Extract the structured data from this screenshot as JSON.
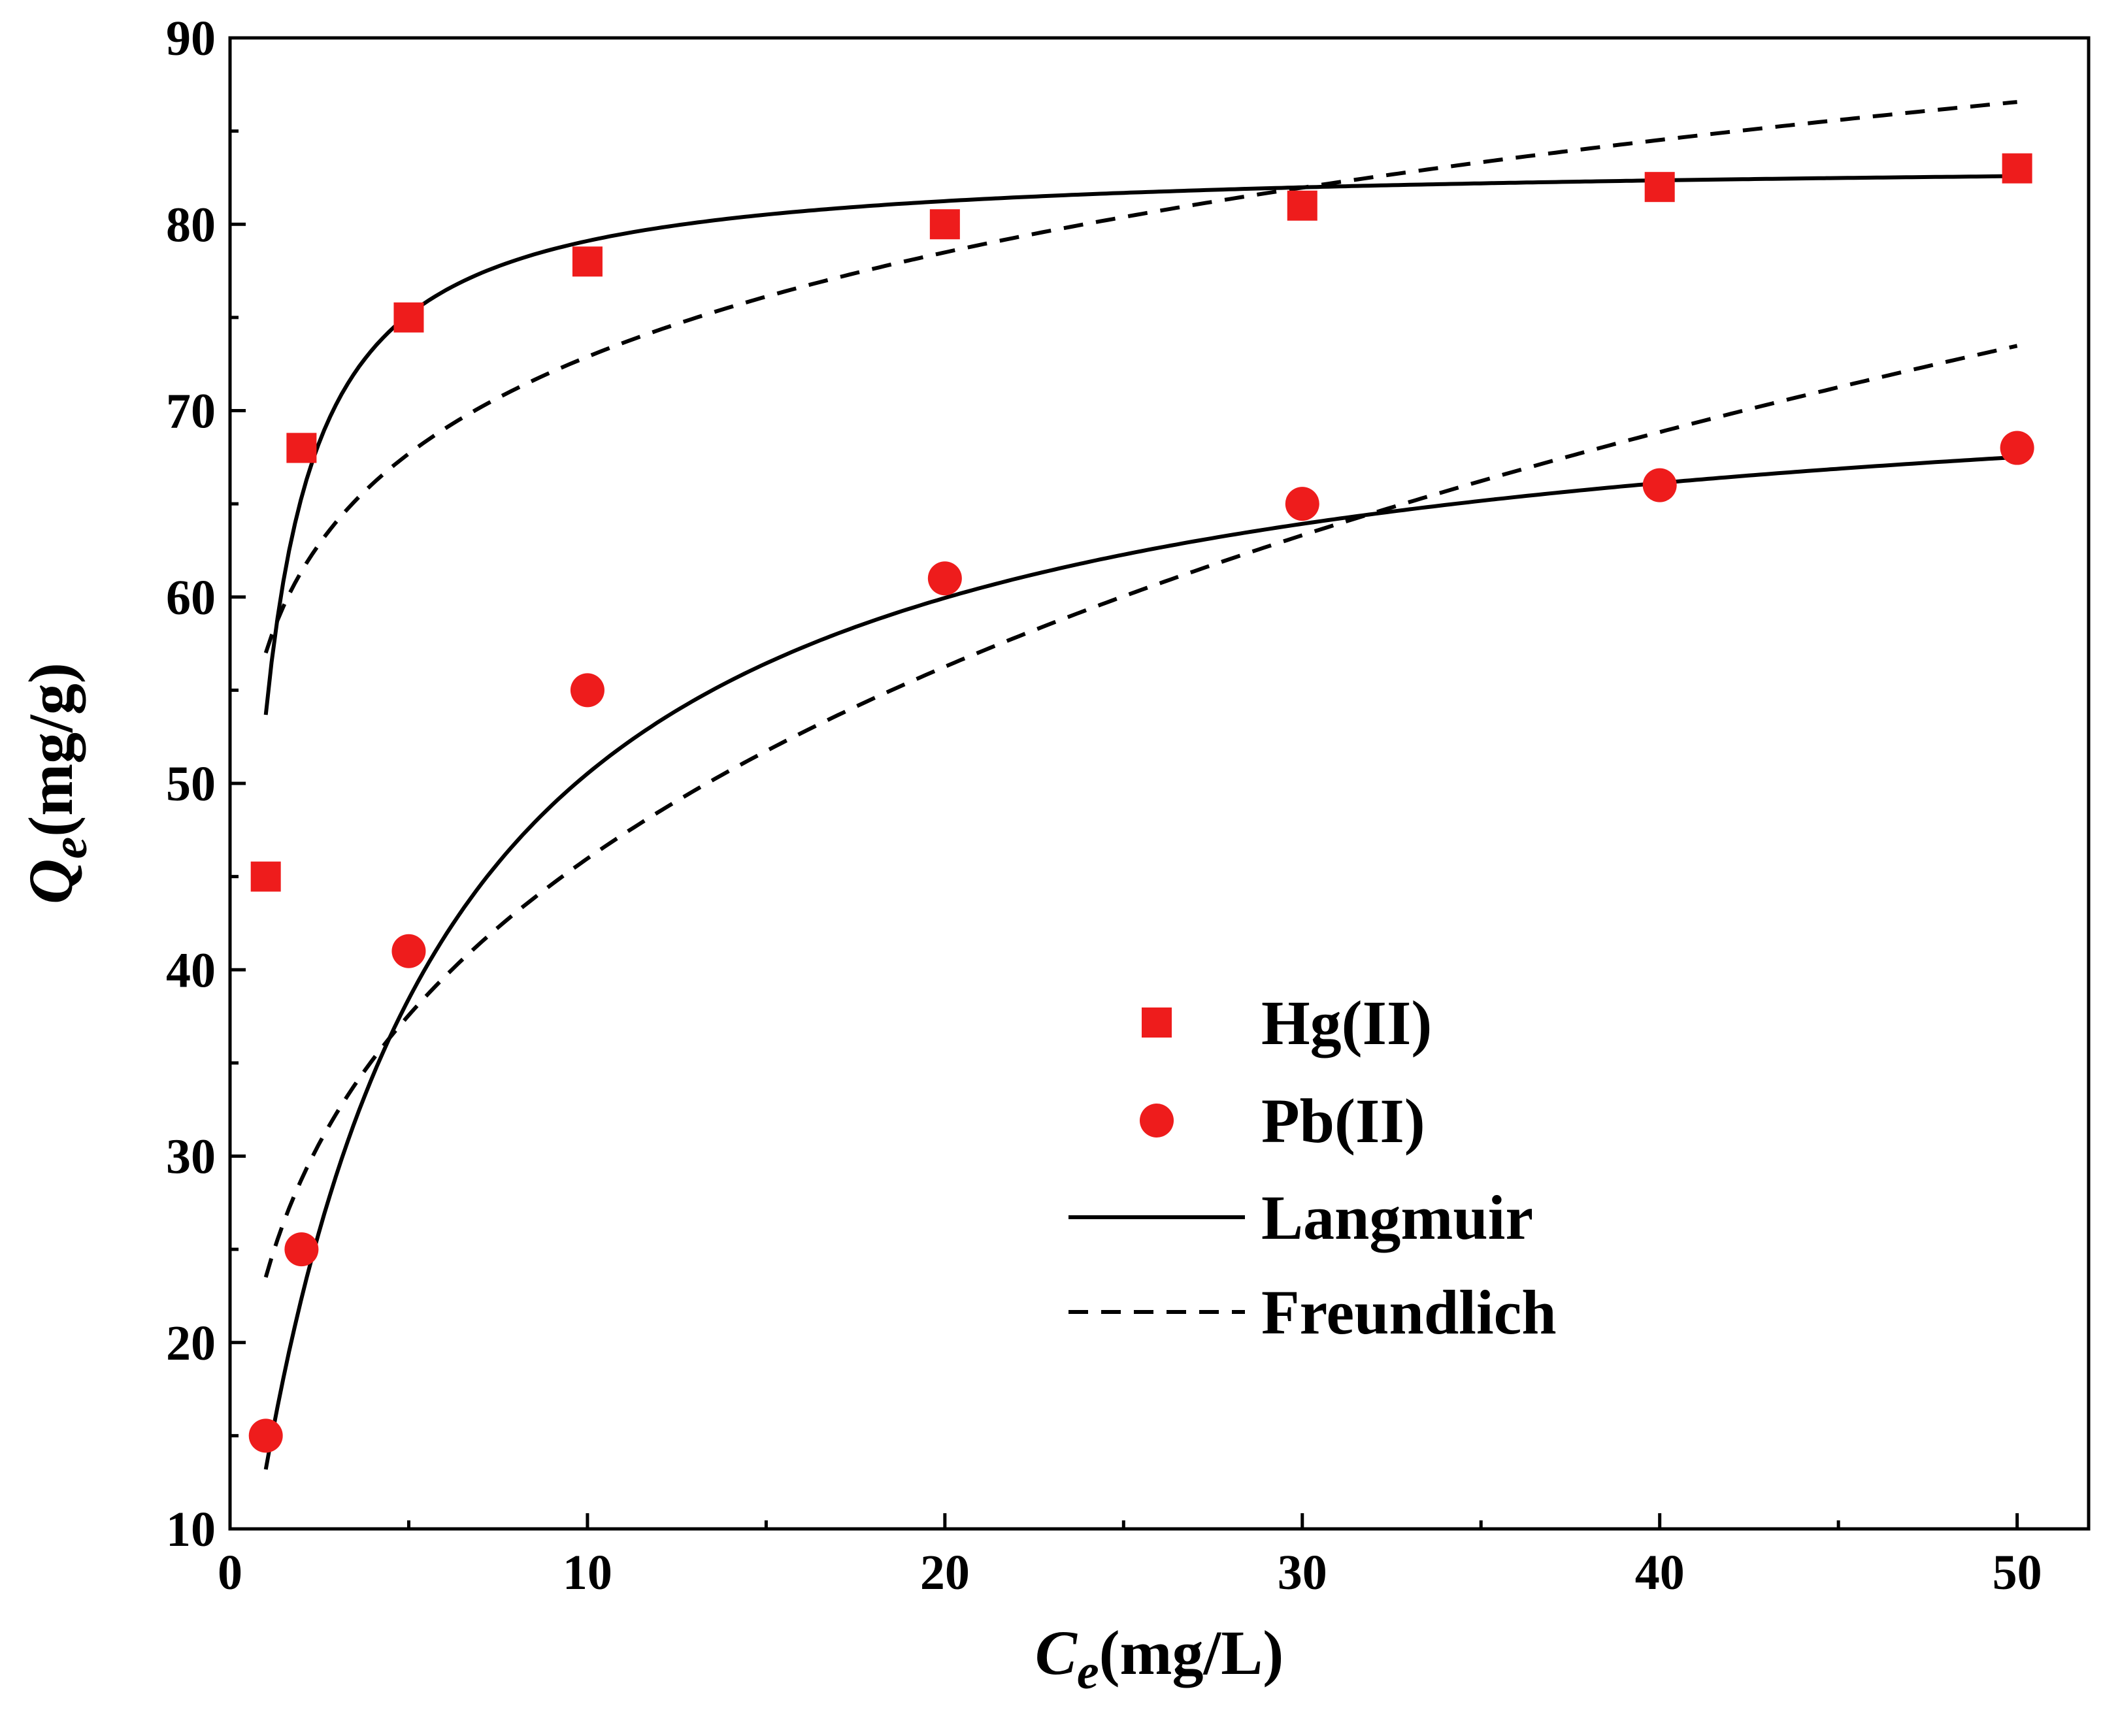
{
  "chart_data": {
    "type": "scatter",
    "title": "",
    "xlabel": {
      "main": "C",
      "sub": "e",
      "unit": "(mg/L)"
    },
    "ylabel": {
      "main": "Q",
      "sub": "e",
      "unit": "(mg/g)"
    },
    "xlim": [
      0,
      52
    ],
    "ylim": [
      10,
      90
    ],
    "xticks": [
      0,
      10,
      20,
      30,
      40,
      50
    ],
    "xticks_minor": [
      5,
      15,
      25,
      35,
      45
    ],
    "yticks": [
      10,
      20,
      30,
      40,
      50,
      60,
      70,
      80,
      90
    ],
    "yticks_minor": [
      15,
      25,
      35,
      45,
      55,
      65,
      75,
      85
    ],
    "grid": false,
    "colors": {
      "marker": "#ee1c1c",
      "line": "#000000"
    },
    "series": [
      {
        "name": "Hg(II)",
        "marker": "square",
        "x": [
          1,
          2,
          5,
          10,
          20,
          30,
          40,
          50
        ],
        "y": [
          45,
          68,
          75,
          78,
          80,
          81,
          82,
          83
        ]
      },
      {
        "name": "Pb(II)",
        "marker": "circle",
        "x": [
          1,
          2,
          5,
          10,
          20,
          30,
          40,
          50
        ],
        "y": [
          15,
          25,
          41,
          55,
          61,
          65,
          66,
          68
        ]
      }
    ],
    "fits": [
      {
        "name": "Langmuir",
        "style": "solid",
        "model": "langmuir",
        "for": "Hg(II)",
        "qmax": 83.5,
        "KL": 1.8,
        "xrange": [
          1,
          50
        ]
      },
      {
        "name": "Langmuir",
        "style": "solid",
        "model": "langmuir",
        "for": "Pb(II)",
        "qmax": 73.7,
        "KL": 0.218,
        "xrange": [
          1,
          50
        ]
      },
      {
        "name": "Freundlich",
        "style": "dashed",
        "model": "freundlich",
        "for": "Hg(II)",
        "KF": 57.0,
        "inv_n": 0.1068,
        "xrange": [
          1,
          50
        ]
      },
      {
        "name": "Freundlich",
        "style": "dashed",
        "model": "freundlich",
        "for": "Pb(II)",
        "KF": 23.5,
        "inv_n": 0.2914,
        "xrange": [
          1,
          50
        ]
      }
    ],
    "legend": {
      "position": "lower-right-center",
      "entries": [
        {
          "label": "Hg(II)",
          "kind": "square"
        },
        {
          "label": "Pb(II)",
          "kind": "circle"
        },
        {
          "label": "Langmuir",
          "kind": "solid"
        },
        {
          "label": "Freundlich",
          "kind": "dashed"
        }
      ]
    }
  }
}
